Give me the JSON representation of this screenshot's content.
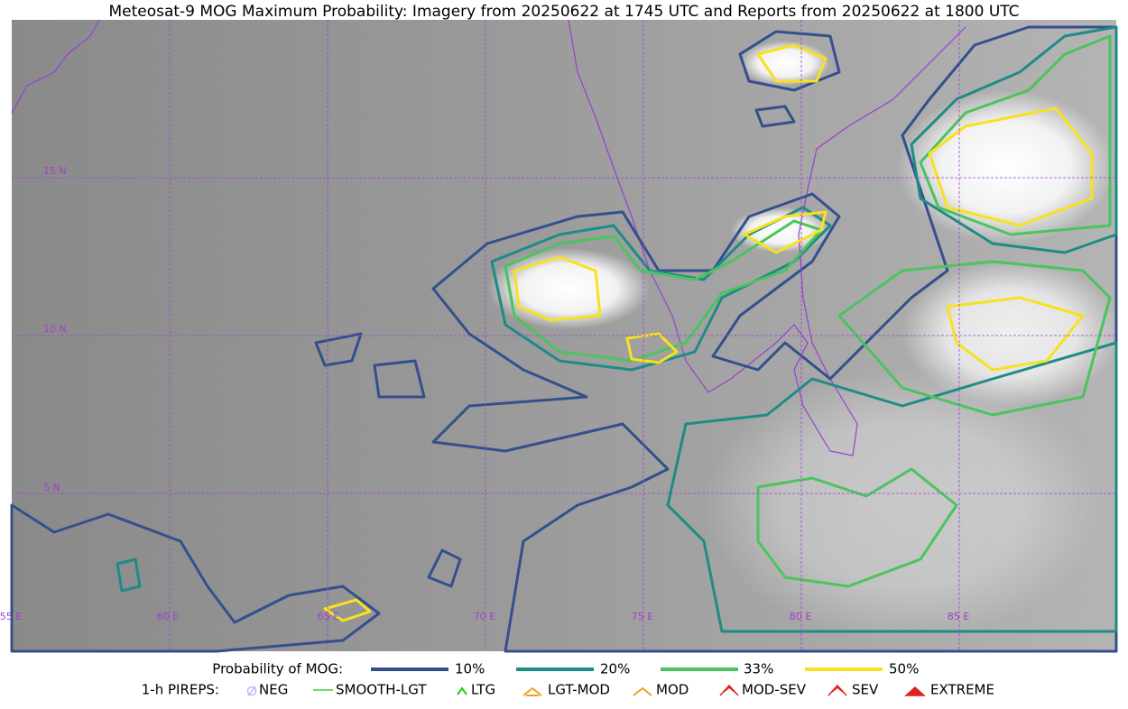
{
  "title": "Meteosat-9 MOG Maximum Probability: Imagery from 20250622 at 1745 UTC and Reports from 20250622 at 1800 UTC",
  "map": {
    "lat_labels": [
      "15 N",
      "10 N",
      "5 N"
    ],
    "lon_labels": [
      "55 E",
      "60 E",
      "65 E",
      "70 E",
      "75 E",
      "80 E",
      "85 E"
    ]
  },
  "legend": {
    "label": "Probability of MOG:",
    "items": [
      {
        "label": "10%",
        "color": "#34508c"
      },
      {
        "label": "20%",
        "color": "#1e8c86"
      },
      {
        "label": "33%",
        "color": "#4cc35e"
      },
      {
        "label": "50%",
        "color": "#f8e11e"
      }
    ]
  },
  "pireps": {
    "label": "1-h PIREPS:",
    "items": [
      "NEG",
      "SMOOTH-LGT",
      "LTG",
      "LGT-MOD",
      "MOD",
      "MOD-SEV",
      "SEV",
      "EXTREME"
    ]
  }
}
